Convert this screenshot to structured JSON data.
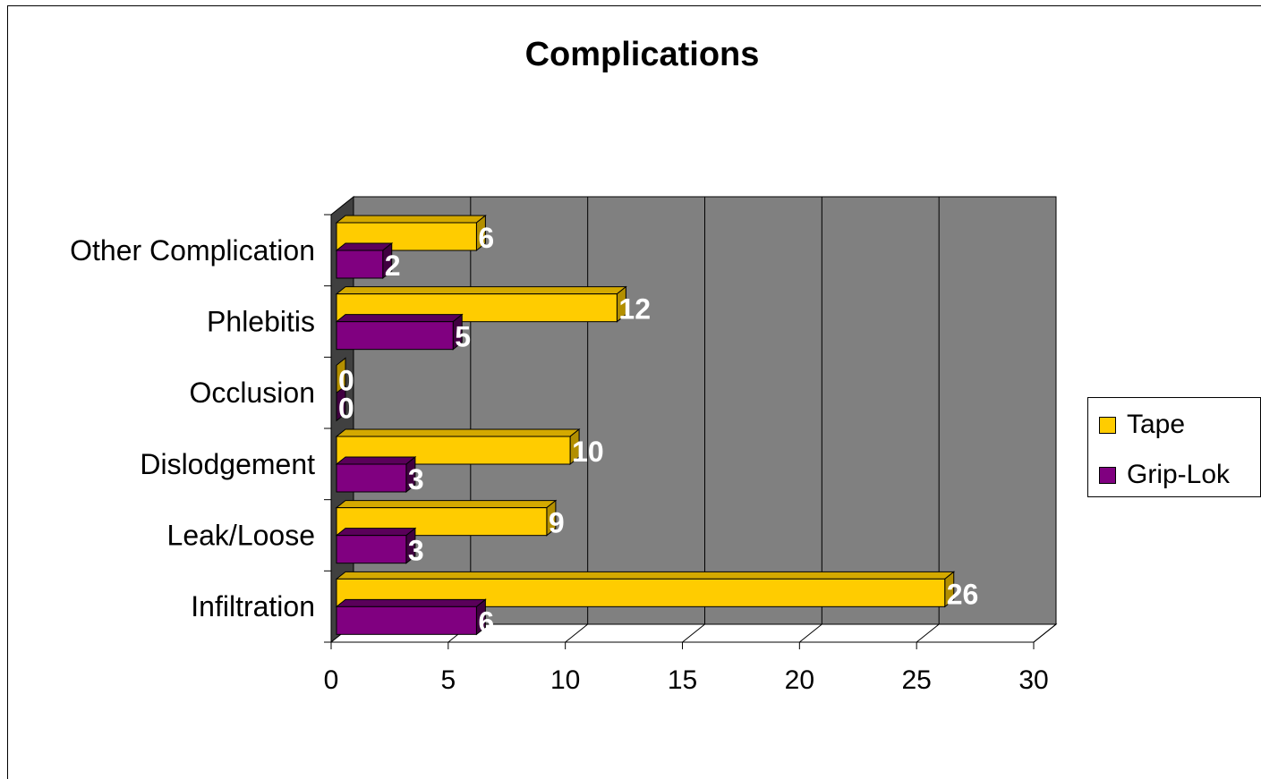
{
  "chart_data": {
    "type": "bar",
    "orientation": "horizontal",
    "title": "Complications",
    "categories": [
      "Infiltration",
      "Leak/Loose",
      "Dislodgement",
      "Occlusion",
      "Phlebitis",
      "Other Complication"
    ],
    "series": [
      {
        "name": "Tape",
        "values": [
          26,
          9,
          10,
          0,
          12,
          6
        ],
        "color": "#FFCC00"
      },
      {
        "name": "Grip-Lok",
        "values": [
          6,
          3,
          3,
          0,
          5,
          2
        ],
        "color": "#800080"
      }
    ],
    "xlim": [
      0,
      30
    ],
    "x_ticks": [
      "0",
      "5",
      "10",
      "15",
      "20",
      "25",
      "30"
    ],
    "grid": "vertical",
    "legend_position": "right",
    "plot_background": "#808080",
    "data_labels": true
  }
}
